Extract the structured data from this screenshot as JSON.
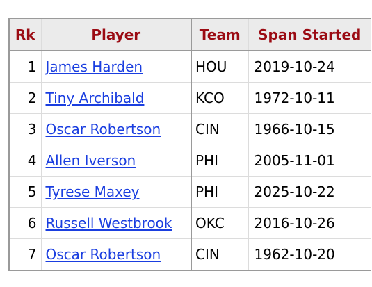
{
  "table": {
    "headers": {
      "rank": "Rk",
      "player": "Player",
      "team": "Team",
      "span_started": "Span Started"
    },
    "rows": [
      {
        "rank": "1",
        "player": "James Harden",
        "team": "HOU",
        "span_started": "2019-10-24"
      },
      {
        "rank": "2",
        "player": "Tiny Archibald",
        "team": "KCO",
        "span_started": "1972-10-11"
      },
      {
        "rank": "3",
        "player": "Oscar Robertson",
        "team": "CIN",
        "span_started": "1966-10-15"
      },
      {
        "rank": "4",
        "player": "Allen Iverson",
        "team": "PHI",
        "span_started": "2005-11-01"
      },
      {
        "rank": "5",
        "player": "Tyrese Maxey",
        "team": "PHI",
        "span_started": "2025-10-22"
      },
      {
        "rank": "6",
        "player": "Russell Westbrook",
        "team": "OKC",
        "span_started": "2016-10-26"
      },
      {
        "rank": "7",
        "player": "Oscar Robertson",
        "team": "CIN",
        "span_started": "1962-10-20"
      }
    ]
  },
  "colors": {
    "header_text": "#9b0b13",
    "header_bg": "#ebebeb",
    "link": "#1a3ee0",
    "border": "#9a9a9a",
    "grid": "#dcdcdc"
  }
}
